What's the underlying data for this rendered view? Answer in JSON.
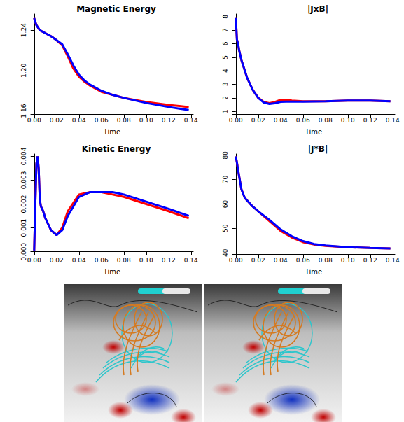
{
  "chart_data": [
    {
      "type": "line",
      "title": "Magnetic Energy",
      "xlabel": "Time",
      "grid": false,
      "x": [
        0,
        0.001,
        0.002,
        0.005,
        0.01,
        0.015,
        0.02,
        0.025,
        0.03,
        0.035,
        0.04,
        0.045,
        0.05,
        0.06,
        0.07,
        0.08,
        0.1,
        0.12,
        0.138
      ],
      "xlim": [
        -0.003,
        0.142
      ],
      "xticks": [
        {
          "value": 0,
          "label": "0.00"
        },
        0.02,
        0.04,
        0.06,
        0.08,
        {
          "value": 0.1,
          "label": "0.10"
        },
        0.12,
        0.14
      ],
      "ylim": [
        1.157,
        1.256
      ],
      "yticks": [
        1.16,
        {
          "value": 1.2,
          "label": "1.20"
        },
        1.24
      ],
      "series": [
        {
          "color": "#ff0000",
          "values": [
            1.252,
            1.248,
            1.245,
            1.24,
            1.237,
            1.234,
            1.23,
            1.225,
            1.214,
            1.202,
            1.194,
            1.189,
            1.185,
            1.179,
            1.176,
            1.173,
            1.169,
            1.166,
            1.164
          ]
        },
        {
          "color": "#0000ff",
          "values": [
            1.252,
            1.248,
            1.245,
            1.24,
            1.237,
            1.234,
            1.23,
            1.226,
            1.216,
            1.205,
            1.196,
            1.19,
            1.186,
            1.18,
            1.176,
            1.173,
            1.168,
            1.164,
            1.161
          ]
        }
      ]
    },
    {
      "type": "line",
      "title": "|JxB|",
      "xlabel": "Time",
      "grid": false,
      "x": [
        0,
        0.001,
        0.002,
        0.003,
        0.005,
        0.01,
        0.015,
        0.02,
        0.025,
        0.03,
        0.035,
        0.04,
        0.045,
        0.05,
        0.06,
        0.08,
        0.1,
        0.12,
        0.138
      ],
      "xlim": [
        -0.003,
        0.142
      ],
      "xticks": [
        {
          "value": 0,
          "label": "0.00"
        },
        0.02,
        0.04,
        0.06,
        0.08,
        {
          "value": 0.1,
          "label": "0.10"
        },
        0.12,
        0.14
      ],
      "ylim": [
        0.8,
        8.2
      ],
      "yticks": [
        1,
        2,
        3,
        4,
        5,
        6,
        7,
        8
      ],
      "series": [
        {
          "color": "#ff0000",
          "values": [
            7.9,
            6.3,
            6.0,
            5.5,
            4.8,
            3.5,
            2.6,
            2.0,
            1.7,
            1.6,
            1.7,
            1.85,
            1.85,
            1.8,
            1.75,
            1.75,
            1.8,
            1.8,
            1.75
          ]
        },
        {
          "color": "#0000ff",
          "values": [
            7.9,
            6.3,
            6.0,
            5.5,
            4.8,
            3.5,
            2.6,
            2.0,
            1.65,
            1.55,
            1.6,
            1.7,
            1.72,
            1.72,
            1.72,
            1.75,
            1.8,
            1.8,
            1.75
          ]
        }
      ]
    },
    {
      "type": "line",
      "title": "Kinetic Energy",
      "xlabel": "Time",
      "grid": false,
      "x": [
        0,
        0.001,
        0.002,
        0.003,
        0.004,
        0.005,
        0.006,
        0.008,
        0.01,
        0.015,
        0.02,
        0.025,
        0.03,
        0.04,
        0.05,
        0.06,
        0.07,
        0.08,
        0.1,
        0.12,
        0.138
      ],
      "xlim": [
        -0.003,
        0.142
      ],
      "xticks": [
        {
          "value": 0,
          "label": "0.00"
        },
        0.02,
        0.04,
        0.06,
        0.08,
        {
          "value": 0.1,
          "label": "0.10"
        },
        0.12,
        0.14
      ],
      "ylim": [
        -0.0001,
        0.0041
      ],
      "yticks": [
        {
          "value": 0,
          "label": "0.000"
        },
        {
          "value": 0.001,
          "label": "0.001"
        },
        {
          "value": 0.002,
          "label": "0.002"
        },
        {
          "value": 0.003,
          "label": "0.003"
        },
        {
          "value": 0.004,
          "label": "0.004"
        }
      ],
      "series": [
        {
          "color": "#ff0000",
          "values": [
            5e-05,
            0.002,
            0.0037,
            0.004,
            0.0035,
            0.0022,
            0.0019,
            0.0017,
            0.0014,
            0.0009,
            0.0007,
            0.001,
            0.0017,
            0.0024,
            0.0025,
            0.0025,
            0.0024,
            0.0023,
            0.002,
            0.0017,
            0.0014
          ]
        },
        {
          "color": "#0000ff",
          "values": [
            5e-05,
            0.002,
            0.0037,
            0.004,
            0.0035,
            0.0022,
            0.0019,
            0.0017,
            0.0014,
            0.0009,
            0.0007,
            0.0009,
            0.0015,
            0.0023,
            0.0025,
            0.0025,
            0.0025,
            0.0024,
            0.0021,
            0.0018,
            0.0015
          ]
        }
      ]
    },
    {
      "type": "line",
      "title": "|J*B|",
      "xlabel": "Time",
      "grid": false,
      "x": [
        0,
        0.001,
        0.002,
        0.005,
        0.008,
        0.01,
        0.015,
        0.02,
        0.03,
        0.04,
        0.05,
        0.06,
        0.07,
        0.08,
        0.1,
        0.12,
        0.138
      ],
      "xlim": [
        -0.003,
        0.142
      ],
      "xticks": [
        {
          "value": 0,
          "label": "0.00"
        },
        0.02,
        0.04,
        0.06,
        0.08,
        {
          "value": 0.1,
          "label": "0.10"
        },
        0.12,
        0.14
      ],
      "ylim": [
        39.5,
        80.5
      ],
      "yticks": [
        40,
        50,
        60,
        70,
        80
      ],
      "series": [
        {
          "color": "#ff0000",
          "values": [
            79.5,
            77,
            74,
            66,
            62.5,
            61.5,
            59,
            57,
            53,
            49,
            46.3,
            44.4,
            43.4,
            42.9,
            42.3,
            42.0,
            41.8
          ]
        },
        {
          "color": "#0000ff",
          "values": [
            79.5,
            77,
            74,
            66,
            62.5,
            61.5,
            59,
            57,
            53.5,
            49.6,
            46.8,
            44.8,
            43.6,
            43.0,
            42.3,
            42.0,
            41.8
          ]
        }
      ]
    }
  ]
}
